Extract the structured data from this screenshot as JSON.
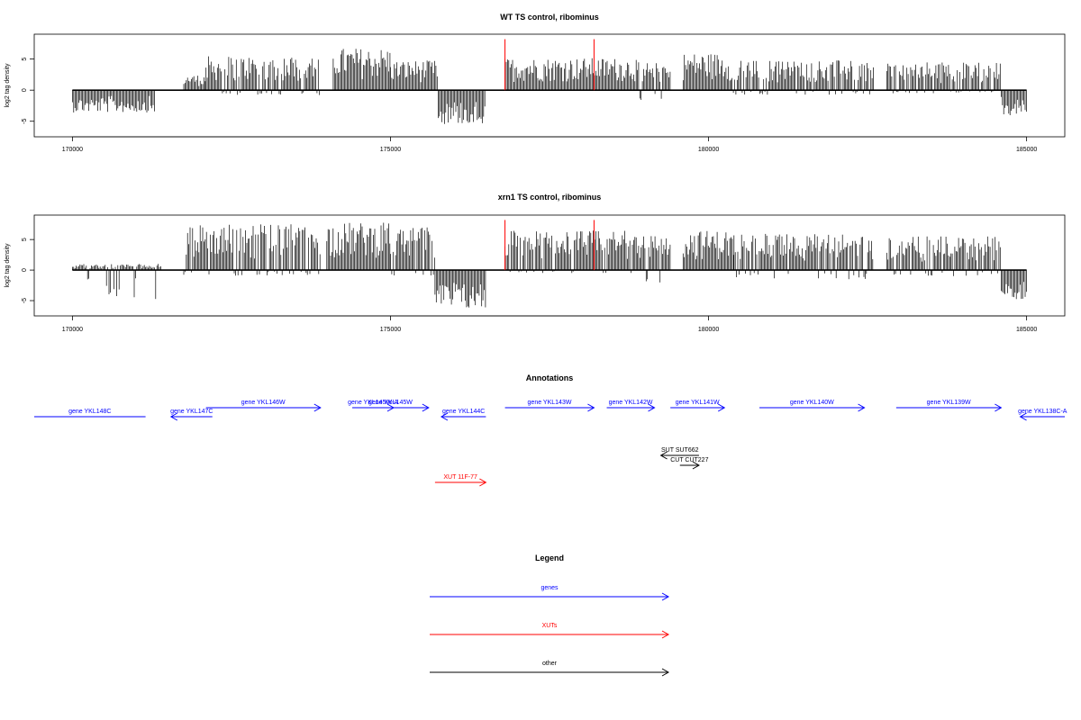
{
  "chart_data": [
    {
      "type": "bar",
      "title": "WT TS control, ribominus",
      "ylabel": "log2 tag density",
      "xlabel": "",
      "xlim": [
        169400,
        185600
      ],
      "ylim": [
        -7.5,
        9
      ],
      "xticks": [
        170000,
        175000,
        180000,
        185000
      ],
      "xtick_labels": [
        "170000",
        "175000",
        "180000",
        "185000"
      ],
      "yticks": [
        -5,
        0,
        5
      ],
      "ytick_labels": [
        "-5",
        "0",
        "5"
      ],
      "series_color": "#000000",
      "red_markers": [
        176800,
        178200
      ],
      "red_marker_height": 8.2,
      "segments": [
        {
          "from": 170000,
          "to": 171300,
          "lo": -3.6,
          "hi": 0
        },
        {
          "from": 171750,
          "to": 172100,
          "lo": 0,
          "hi": 2.5
        },
        {
          "from": 172100,
          "to": 173900,
          "lo": -0.8,
          "hi": 5.5
        },
        {
          "from": 174100,
          "to": 175000,
          "lo": 0,
          "hi": 6.8
        },
        {
          "from": 175000,
          "to": 175750,
          "lo": 0,
          "hi": 4.8
        },
        {
          "from": 175750,
          "to": 176500,
          "lo": -5.5,
          "hi": 0
        },
        {
          "from": 176800,
          "to": 178900,
          "lo": 0,
          "hi": 5.2
        },
        {
          "from": 178900,
          "to": 179400,
          "lo": -1.8,
          "hi": 4.5
        },
        {
          "from": 179600,
          "to": 180350,
          "lo": 0,
          "hi": 6
        },
        {
          "from": 180350,
          "to": 182600,
          "lo": -0.8,
          "hi": 4.8
        },
        {
          "from": 182800,
          "to": 184600,
          "lo": -0.5,
          "hi": 4.5
        },
        {
          "from": 184600,
          "to": 185000,
          "lo": -4.2,
          "hi": 0
        }
      ]
    },
    {
      "type": "bar",
      "title": "xrn1 TS control, ribominus",
      "ylabel": "log2 tag density",
      "xlabel": "",
      "xlim": [
        169400,
        185600
      ],
      "ylim": [
        -7.5,
        9
      ],
      "xticks": [
        170000,
        175000,
        180000,
        185000
      ],
      "xtick_labels": [
        "170000",
        "175000",
        "180000",
        "185000"
      ],
      "yticks": [
        -5,
        0,
        5
      ],
      "ytick_labels": [
        "-5",
        "0",
        "5"
      ],
      "series_color": "#000000",
      "red_markers": [
        176800,
        178200
      ],
      "red_marker_height": 8.2,
      "segments": [
        {
          "from": 170000,
          "to": 171400,
          "lo": -4.8,
          "hi": 1
        },
        {
          "from": 171750,
          "to": 173900,
          "lo": -1,
          "hi": 7.5
        },
        {
          "from": 174000,
          "to": 175000,
          "lo": 0,
          "hi": 7.8
        },
        {
          "from": 175000,
          "to": 175700,
          "lo": -1,
          "hi": 7
        },
        {
          "from": 175700,
          "to": 176500,
          "lo": -6.5,
          "hi": 0
        },
        {
          "from": 176800,
          "to": 178900,
          "lo": -0.5,
          "hi": 6.5
        },
        {
          "from": 178900,
          "to": 179400,
          "lo": -2.5,
          "hi": 6
        },
        {
          "from": 179600,
          "to": 180400,
          "lo": 0,
          "hi": 6.5
        },
        {
          "from": 180400,
          "to": 182600,
          "lo": -1.5,
          "hi": 6
        },
        {
          "from": 182800,
          "to": 184600,
          "lo": -1,
          "hi": 5.5
        },
        {
          "from": 184600,
          "to": 185000,
          "lo": -4.8,
          "hi": 0
        }
      ]
    }
  ],
  "annotations": {
    "title": "Annotations",
    "xlim": [
      169400,
      185600
    ],
    "features": [
      {
        "label": "gene YKL148C",
        "start": 169400,
        "end": 171150,
        "row": 1,
        "dir": "none",
        "color": "#0000ff"
      },
      {
        "label": "gene YKL147C",
        "start": 171550,
        "end": 172200,
        "row": 1,
        "dir": "left",
        "color": "#0000ff"
      },
      {
        "label": "gene YKL146W",
        "start": 172100,
        "end": 173900,
        "row": 0,
        "dir": "right",
        "color": "#0000ff"
      },
      {
        "label": "gene YKL145W-A",
        "start": 174400,
        "end": 175050,
        "row": 0,
        "dir": "right",
        "color": "#0000ff"
      },
      {
        "label": "gene YKL145W",
        "start": 174400,
        "end": 175600,
        "row": 0,
        "dir": "right",
        "color": "#0000ff"
      },
      {
        "label": "gene YKL144C",
        "start": 175800,
        "end": 176500,
        "row": 1,
        "dir": "left",
        "color": "#0000ff"
      },
      {
        "label": "gene YKL143W",
        "start": 176800,
        "end": 178200,
        "row": 0,
        "dir": "right",
        "color": "#0000ff"
      },
      {
        "label": "gene YKL142W",
        "start": 178400,
        "end": 179150,
        "row": 0,
        "dir": "right",
        "color": "#0000ff"
      },
      {
        "label": "gene YKL141W",
        "start": 179400,
        "end": 180250,
        "row": 0,
        "dir": "right",
        "color": "#0000ff"
      },
      {
        "label": "gene YKL140W",
        "start": 180800,
        "end": 182450,
        "row": 0,
        "dir": "right",
        "color": "#0000ff"
      },
      {
        "label": "gene YKL139W",
        "start": 182950,
        "end": 184600,
        "row": 0,
        "dir": "right",
        "color": "#0000ff"
      },
      {
        "label": "gene YKL138C-A",
        "start": 184900,
        "end": 185600,
        "row": 1,
        "dir": "left",
        "color": "#0000ff"
      },
      {
        "label": "SUT SUT662",
        "start": 179250,
        "end": 179850,
        "row": 4,
        "dir": "left",
        "color": "#000000"
      },
      {
        "label": "CUT CUT227",
        "start": 179550,
        "end": 179850,
        "row": 5,
        "dir": "right",
        "color": "#000000"
      },
      {
        "label": "XUT 11F-77",
        "start": 175700,
        "end": 176500,
        "row": 7,
        "dir": "right",
        "color": "#ff0000"
      }
    ]
  },
  "legend": {
    "title": "Legend",
    "items": [
      {
        "label": "genes",
        "color": "#0000ff"
      },
      {
        "label": "XUTs",
        "color": "#ff0000"
      },
      {
        "label": "other",
        "color": "#000000"
      }
    ]
  }
}
